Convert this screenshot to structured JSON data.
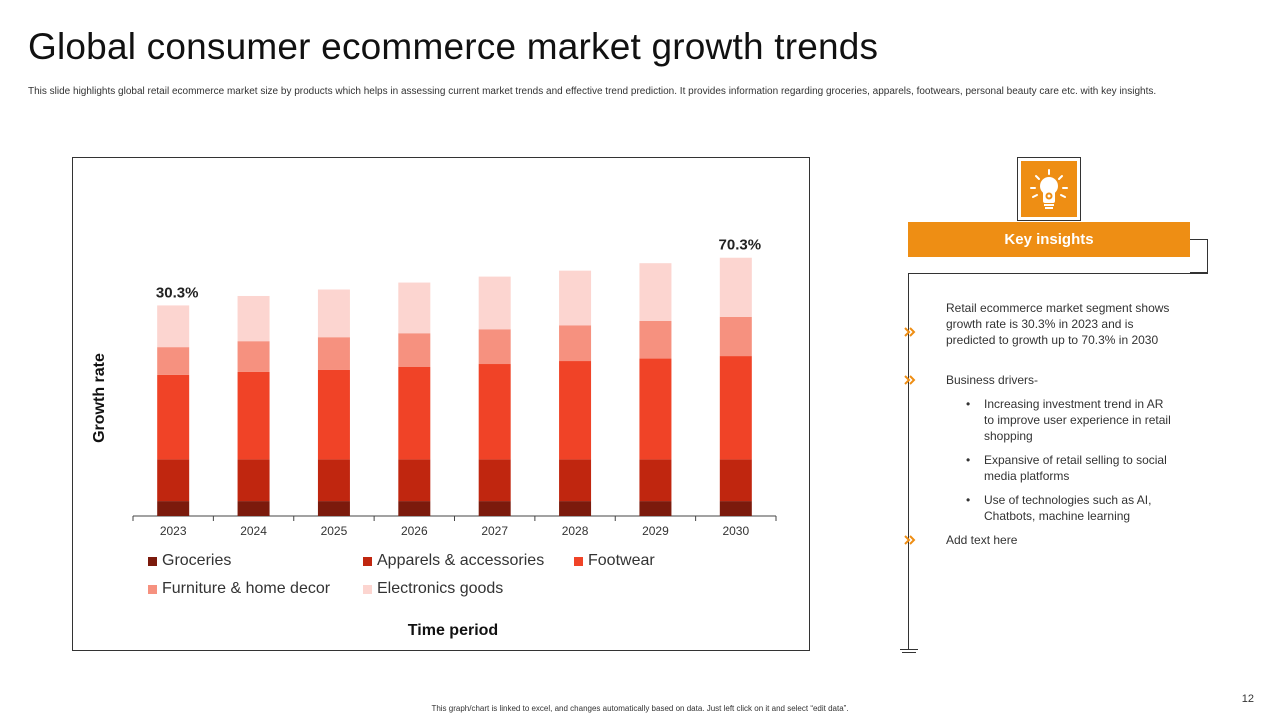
{
  "slide": {
    "title": "Global consumer ecommerce market growth trends",
    "subtitle": "This slide highlights global retail ecommerce market size by products which helps in assessing current market trends and effective trend prediction. It provides information regarding groceries, apparels, footwears, personal beauty care etc. with key insights.",
    "footnote": "This graph/chart is linked to excel, and changes automatically based on data. Just left click on it and select “edit data”.",
    "page_number": "12"
  },
  "colors": {
    "accent": "#ee8e14",
    "groceries": "#7b1a0c",
    "apparels": "#c0260f",
    "footwear": "#f04327",
    "furniture": "#f6917f",
    "electronics": "#fcd5d0"
  },
  "chart_data": {
    "type": "bar",
    "stacked": true,
    "categories": [
      "2023",
      "2024",
      "2025",
      "2026",
      "2027",
      "2028",
      "2029",
      "2030"
    ],
    "series": [
      {
        "name": "Groceries",
        "values": [
          3.0,
          3.0,
          3.0,
          3.0,
          3.0,
          3.0,
          3.0,
          3.0
        ]
      },
      {
        "name": "Apparels & accessories",
        "values": [
          8.4,
          8.4,
          8.4,
          8.4,
          8.4,
          8.4,
          8.4,
          8.4
        ]
      },
      {
        "name": "Footwear",
        "values": [
          17.0,
          17.6,
          18.0,
          18.6,
          19.2,
          19.8,
          20.3,
          20.8
        ]
      },
      {
        "name": "Furniture & home decor",
        "values": [
          5.6,
          6.2,
          6.6,
          6.8,
          7.0,
          7.2,
          7.6,
          7.9
        ]
      },
      {
        "name": "Electronics goods",
        "values": [
          8.4,
          9.1,
          9.6,
          10.2,
          10.6,
          11.0,
          11.6,
          11.9
        ]
      }
    ],
    "data_labels": [
      {
        "category": "2023",
        "text": "30.3%"
      },
      {
        "category": "2030",
        "text": "70.3%"
      }
    ],
    "title": "",
    "xlabel": "Time period",
    "ylabel": "Growth rate",
    "ylim": [
      0,
      60
    ],
    "grid": false,
    "legend_position": "bottom"
  },
  "insights": {
    "header": "Key insights",
    "icon": "lightbulb-gear-icon",
    "items": [
      {
        "text": "Retail ecommerce market segment shows growth rate is 30.3% in 2023 and is predicted to growth up to 70.3% in 2030"
      },
      {
        "text": "Business drivers-"
      },
      {
        "text": "Add text here"
      }
    ],
    "drivers": [
      "Increasing investment trend in AR to improve  user experience in retail shopping",
      "Expansive of retail selling to social media platforms",
      "Use of technologies such as AI, Chatbots, machine learning"
    ],
    "bullet": "•"
  }
}
